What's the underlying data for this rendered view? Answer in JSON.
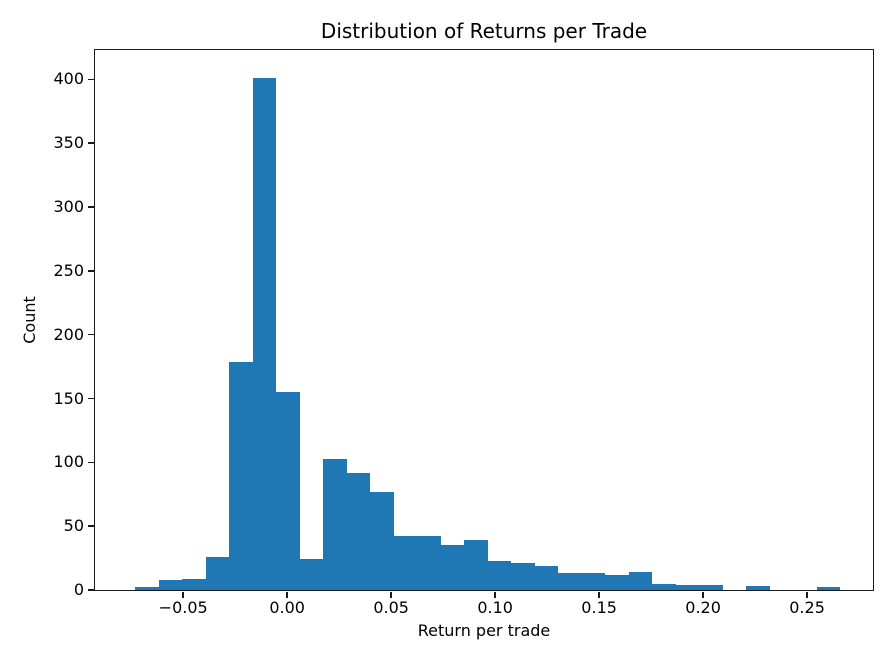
{
  "chart_data": {
    "type": "bar",
    "subtype": "histogram",
    "title": "Distribution of Returns per Trade",
    "xlabel": "Return per trade",
    "ylabel": "Count",
    "bar_color": "#1f77b4",
    "grid": false,
    "legend": null,
    "bin_start": -0.073,
    "bin_width": 0.0113,
    "counts": [
      2,
      8,
      9,
      26,
      179,
      401,
      155,
      24,
      103,
      92,
      77,
      42,
      42,
      35,
      39,
      23,
      21,
      19,
      13,
      13,
      12,
      14,
      5,
      4,
      4,
      0,
      3,
      0,
      0,
      2
    ],
    "xlim": [
      -0.0924,
      0.2817
    ],
    "ylim": [
      0,
      423
    ],
    "x_ticks": [
      -0.05,
      0.0,
      0.05,
      0.1,
      0.15,
      0.2,
      0.25
    ],
    "x_tick_labels": [
      "−0.05",
      "0.00",
      "0.05",
      "0.10",
      "0.15",
      "0.20",
      "0.25"
    ],
    "y_ticks": [
      0,
      50,
      100,
      150,
      200,
      250,
      300,
      350,
      400
    ],
    "y_tick_labels": [
      "0",
      "50",
      "100",
      "150",
      "200",
      "250",
      "300",
      "350",
      "400"
    ]
  }
}
